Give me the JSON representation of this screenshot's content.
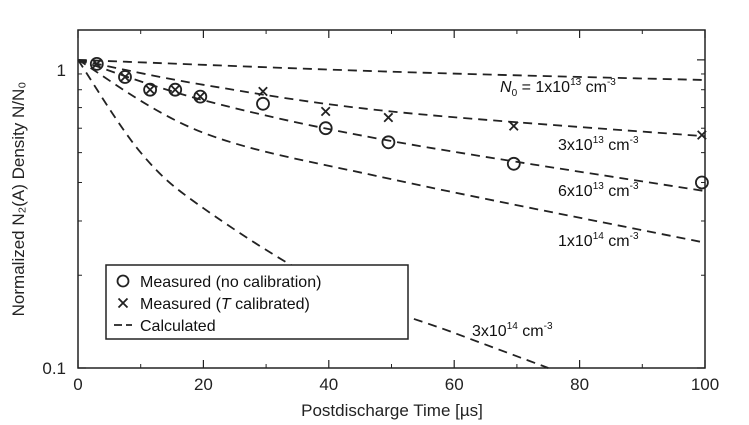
{
  "chart_data": {
    "type": "scatter",
    "xlabel": "Postdischarge Time [µs]",
    "ylabel": "Normalized N₂(A) Density N/N₀",
    "xlim": [
      0,
      100
    ],
    "ylim": [
      0.1,
      1.25
    ],
    "y_scale": "log",
    "x_ticks": [
      0,
      20,
      40,
      60,
      80,
      100
    ],
    "y_ticks": [
      {
        "value": 0.1,
        "label": "0.1"
      },
      {
        "value": 1,
        "label": "1"
      }
    ],
    "curve_labels": {
      "n0_prefix": "N",
      "n0_sub": "0",
      "n0_eq": " = 1x10",
      "first_exp": "13",
      "unit": " cm",
      "unit_exp": "-3",
      "others": [
        {
          "mant": "3x10",
          "exp": "13"
        },
        {
          "mant": "6x10",
          "exp": "13"
        },
        {
          "mant": "1x10",
          "exp": "14"
        },
        {
          "mant": "3x10",
          "exp": "14"
        }
      ]
    },
    "legend": {
      "measured_no_cal": "Measured (no calibration)",
      "measured_t_pre": "Measured (",
      "measured_t_T": "T",
      "measured_t_post": " calibrated)",
      "calculated": "Calculated"
    },
    "series": [
      {
        "name": "Measured (no calibration)",
        "marker": "circle",
        "points": [
          [
            3,
            0.97
          ],
          [
            7.5,
            0.88
          ],
          [
            11.5,
            0.8
          ],
          [
            15.5,
            0.8
          ],
          [
            19.5,
            0.76
          ],
          [
            29.5,
            0.72
          ],
          [
            39.5,
            0.6
          ],
          [
            49.5,
            0.54
          ],
          [
            69.5,
            0.46
          ],
          [
            99.5,
            0.4
          ]
        ]
      },
      {
        "name": "Measured (T calibrated)",
        "marker": "x",
        "points": [
          [
            3,
            0.97
          ],
          [
            7.5,
            0.88
          ],
          [
            11.5,
            0.8
          ],
          [
            15.5,
            0.8
          ],
          [
            19.5,
            0.76
          ],
          [
            29.5,
            0.79
          ],
          [
            39.5,
            0.68
          ],
          [
            49.5,
            0.65
          ],
          [
            69.5,
            0.61
          ],
          [
            99.5,
            0.57
          ]
        ]
      }
    ],
    "calculated_curves": [
      {
        "N0": "1x10^13",
        "points": [
          [
            0,
            1.0
          ],
          [
            50,
            0.915
          ],
          [
            100,
            0.86
          ]
        ]
      },
      {
        "N0": "3x10^13",
        "points": [
          [
            0,
            1.0
          ],
          [
            20,
            0.83
          ],
          [
            50,
            0.68
          ],
          [
            100,
            0.565
          ]
        ]
      },
      {
        "N0": "6x10^13",
        "points": [
          [
            0,
            1.0
          ],
          [
            20,
            0.74
          ],
          [
            50,
            0.545
          ],
          [
            100,
            0.375
          ]
        ]
      },
      {
        "N0": "1x10^14",
        "points": [
          [
            0,
            1.0
          ],
          [
            20,
            0.58
          ],
          [
            50,
            0.41
          ],
          [
            100,
            0.255
          ]
        ]
      },
      {
        "N0": "3x10^14",
        "points": [
          [
            0,
            1.0
          ],
          [
            10,
            0.5
          ],
          [
            20,
            0.33
          ],
          [
            40,
            0.185
          ],
          [
            60,
            0.13
          ],
          [
            75,
            0.1
          ]
        ]
      }
    ],
    "grid": false,
    "legend_position": "bottom-left"
  }
}
